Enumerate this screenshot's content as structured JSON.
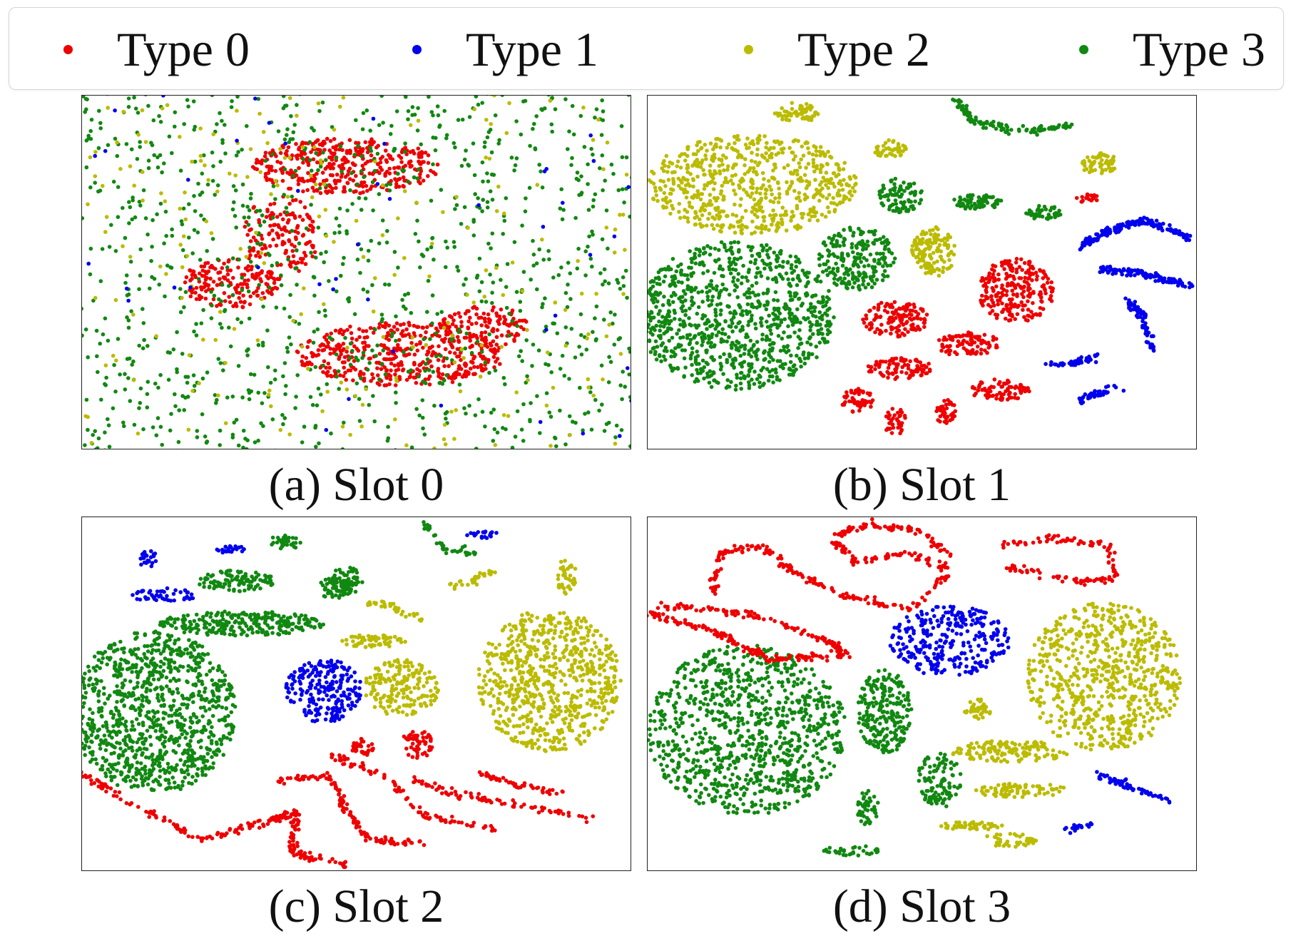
{
  "legend": {
    "items": [
      {
        "label": "Type 0",
        "color": "#ee0000"
      },
      {
        "label": "Type 1",
        "color": "#0000ee"
      },
      {
        "label": "Type 2",
        "color": "#bbbb00"
      },
      {
        "label": "Type 3",
        "color": "#118811"
      }
    ]
  },
  "chart_data": [
    {
      "type": "scatter",
      "title": "(a) Slot 0",
      "grid": false,
      "clusters": [
        {
          "series": "Type 0",
          "shape": "blob",
          "cx": 0.48,
          "cy": 0.2,
          "rx": 0.17,
          "ry": 0.08,
          "n": 380
        },
        {
          "series": "Type 0",
          "shape": "blob",
          "cx": 0.27,
          "cy": 0.53,
          "rx": 0.09,
          "ry": 0.07,
          "n": 160
        },
        {
          "series": "Type 0",
          "shape": "blob",
          "cx": 0.36,
          "cy": 0.4,
          "rx": 0.07,
          "ry": 0.12,
          "n": 150
        },
        {
          "series": "Type 0",
          "shape": "blob",
          "cx": 0.58,
          "cy": 0.73,
          "rx": 0.19,
          "ry": 0.09,
          "n": 440
        },
        {
          "series": "Type 0",
          "shape": "blob",
          "cx": 0.73,
          "cy": 0.65,
          "rx": 0.08,
          "ry": 0.06,
          "n": 120
        },
        {
          "series": "Type 3",
          "shape": "scatter",
          "cx": 0.5,
          "cy": 0.5,
          "rx": 0.62,
          "ry": 0.68,
          "n": 1900
        },
        {
          "series": "Type 2",
          "shape": "scatter",
          "cx": 0.5,
          "cy": 0.5,
          "rx": 0.6,
          "ry": 0.66,
          "n": 360
        },
        {
          "series": "Type 1",
          "shape": "scatter",
          "cx": 0.5,
          "cy": 0.5,
          "rx": 0.6,
          "ry": 0.66,
          "n": 70
        }
      ]
    },
    {
      "type": "scatter",
      "title": "(b) Slot 1",
      "grid": false,
      "clusters": [
        {
          "series": "Type 2",
          "shape": "blob",
          "cx": 0.19,
          "cy": 0.25,
          "rx": 0.19,
          "ry": 0.14,
          "n": 650
        },
        {
          "series": "Type 3",
          "shape": "blob",
          "cx": 0.16,
          "cy": 0.62,
          "rx": 0.18,
          "ry": 0.21,
          "n": 950
        },
        {
          "series": "Type 3",
          "shape": "blob",
          "cx": 0.38,
          "cy": 0.46,
          "rx": 0.07,
          "ry": 0.09,
          "n": 210
        },
        {
          "series": "Type 3",
          "shape": "blob",
          "cx": 0.46,
          "cy": 0.28,
          "rx": 0.04,
          "ry": 0.05,
          "n": 90
        },
        {
          "series": "Type 3",
          "shape": "blob",
          "cx": 0.6,
          "cy": 0.3,
          "rx": 0.045,
          "ry": 0.022,
          "n": 70
        },
        {
          "series": "Type 3",
          "shape": "blob",
          "cx": 0.72,
          "cy": 0.33,
          "rx": 0.035,
          "ry": 0.02,
          "n": 45
        },
        {
          "series": "Type 3",
          "shape": "curve",
          "points": [
            [
              0.56,
              0.01
            ],
            [
              0.6,
              0.08
            ],
            [
              0.7,
              0.1
            ],
            [
              0.78,
              0.08
            ]
          ],
          "n": 120
        },
        {
          "series": "Type 2",
          "shape": "blob",
          "cx": 0.52,
          "cy": 0.44,
          "rx": 0.04,
          "ry": 0.07,
          "n": 140
        },
        {
          "series": "Type 2",
          "shape": "blob",
          "cx": 0.27,
          "cy": 0.05,
          "rx": 0.04,
          "ry": 0.03,
          "n": 60
        },
        {
          "series": "Type 2",
          "shape": "blob",
          "cx": 0.44,
          "cy": 0.15,
          "rx": 0.03,
          "ry": 0.025,
          "n": 45
        },
        {
          "series": "Type 2",
          "shape": "blob",
          "cx": 0.82,
          "cy": 0.19,
          "rx": 0.035,
          "ry": 0.03,
          "n": 60
        },
        {
          "series": "Type 0",
          "shape": "blob",
          "cx": 0.67,
          "cy": 0.55,
          "rx": 0.07,
          "ry": 0.09,
          "n": 240
        },
        {
          "series": "Type 0",
          "shape": "blob",
          "cx": 0.45,
          "cy": 0.63,
          "rx": 0.06,
          "ry": 0.05,
          "n": 130
        },
        {
          "series": "Type 0",
          "shape": "blob",
          "cx": 0.58,
          "cy": 0.7,
          "rx": 0.06,
          "ry": 0.035,
          "n": 90
        },
        {
          "series": "Type 0",
          "shape": "blob",
          "cx": 0.46,
          "cy": 0.77,
          "rx": 0.06,
          "ry": 0.03,
          "n": 90
        },
        {
          "series": "Type 0",
          "shape": "blob",
          "cx": 0.64,
          "cy": 0.83,
          "rx": 0.055,
          "ry": 0.03,
          "n": 80
        },
        {
          "series": "Type 0",
          "shape": "blob",
          "cx": 0.38,
          "cy": 0.86,
          "rx": 0.03,
          "ry": 0.035,
          "n": 50
        },
        {
          "series": "Type 0",
          "shape": "blob",
          "cx": 0.45,
          "cy": 0.92,
          "rx": 0.02,
          "ry": 0.04,
          "n": 40
        },
        {
          "series": "Type 0",
          "shape": "blob",
          "cx": 0.54,
          "cy": 0.89,
          "rx": 0.02,
          "ry": 0.035,
          "n": 40
        },
        {
          "series": "Type 0",
          "shape": "blob",
          "cx": 0.8,
          "cy": 0.29,
          "rx": 0.02,
          "ry": 0.012,
          "n": 20
        },
        {
          "series": "Type 1",
          "shape": "curve",
          "points": [
            [
              0.78,
              0.43
            ],
            [
              0.84,
              0.38
            ],
            [
              0.9,
              0.35
            ]
          ],
          "n": 90
        },
        {
          "series": "Type 1",
          "shape": "curve",
          "points": [
            [
              0.82,
              0.49
            ],
            [
              0.9,
              0.5
            ],
            [
              0.99,
              0.54
            ]
          ],
          "n": 110
        },
        {
          "series": "Type 1",
          "shape": "curve",
          "points": [
            [
              0.89,
              0.35
            ],
            [
              0.94,
              0.37
            ],
            [
              0.99,
              0.41
            ]
          ],
          "n": 70
        },
        {
          "series": "Type 1",
          "shape": "curve",
          "points": [
            [
              0.87,
              0.58
            ],
            [
              0.9,
              0.62
            ],
            [
              0.92,
              0.72
            ]
          ],
          "n": 70
        },
        {
          "series": "Type 1",
          "shape": "curve",
          "points": [
            [
              0.73,
              0.76
            ],
            [
              0.78,
              0.75
            ],
            [
              0.82,
              0.74
            ]
          ],
          "n": 45
        },
        {
          "series": "Type 1",
          "shape": "curve",
          "points": [
            [
              0.78,
              0.86
            ],
            [
              0.82,
              0.84
            ],
            [
              0.86,
              0.82
            ]
          ],
          "n": 40
        }
      ]
    },
    {
      "type": "scatter",
      "title": "(c) Slot 2",
      "grid": false,
      "clusters": [
        {
          "series": "Type 3",
          "shape": "blob",
          "cx": 0.13,
          "cy": 0.55,
          "rx": 0.15,
          "ry": 0.23,
          "n": 1000
        },
        {
          "series": "Type 3",
          "shape": "blob",
          "cx": 0.29,
          "cy": 0.3,
          "rx": 0.15,
          "ry": 0.035,
          "n": 260
        },
        {
          "series": "Type 3",
          "shape": "blob",
          "cx": 0.28,
          "cy": 0.18,
          "rx": 0.07,
          "ry": 0.03,
          "n": 110
        },
        {
          "series": "Type 3",
          "shape": "blob",
          "cx": 0.48,
          "cy": 0.18,
          "rx": 0.03,
          "ry": 0.04,
          "n": 60
        },
        {
          "series": "Type 3",
          "shape": "blob",
          "cx": 0.37,
          "cy": 0.07,
          "rx": 0.03,
          "ry": 0.02,
          "n": 35
        },
        {
          "series": "Type 3",
          "shape": "blob",
          "cx": 0.46,
          "cy": 0.2,
          "rx": 0.03,
          "ry": 0.03,
          "n": 45
        },
        {
          "series": "Type 3",
          "shape": "curve",
          "points": [
            [
              0.62,
              0.01
            ],
            [
              0.66,
              0.09
            ],
            [
              0.72,
              0.1
            ]
          ],
          "n": 40
        },
        {
          "series": "Type 1",
          "shape": "blob",
          "cx": 0.44,
          "cy": 0.49,
          "rx": 0.07,
          "ry": 0.09,
          "n": 230
        },
        {
          "series": "Type 1",
          "shape": "blob",
          "cx": 0.15,
          "cy": 0.22,
          "rx": 0.06,
          "ry": 0.02,
          "n": 50
        },
        {
          "series": "Type 1",
          "shape": "blob",
          "cx": 0.12,
          "cy": 0.12,
          "rx": 0.015,
          "ry": 0.035,
          "n": 25
        },
        {
          "series": "Type 1",
          "shape": "blob",
          "cx": 0.27,
          "cy": 0.09,
          "rx": 0.025,
          "ry": 0.012,
          "n": 20
        },
        {
          "series": "Type 1",
          "shape": "blob",
          "cx": 0.73,
          "cy": 0.05,
          "rx": 0.03,
          "ry": 0.01,
          "n": 20
        },
        {
          "series": "Type 2",
          "shape": "blob",
          "cx": 0.85,
          "cy": 0.46,
          "rx": 0.13,
          "ry": 0.2,
          "n": 720
        },
        {
          "series": "Type 2",
          "shape": "blob",
          "cx": 0.58,
          "cy": 0.48,
          "rx": 0.07,
          "ry": 0.08,
          "n": 180
        },
        {
          "series": "Type 2",
          "shape": "blob",
          "cx": 0.53,
          "cy": 0.35,
          "rx": 0.06,
          "ry": 0.02,
          "n": 60
        },
        {
          "series": "Type 2",
          "shape": "blob",
          "cx": 0.88,
          "cy": 0.17,
          "rx": 0.02,
          "ry": 0.05,
          "n": 40
        },
        {
          "series": "Type 2",
          "shape": "curve",
          "points": [
            [
              0.52,
              0.24
            ],
            [
              0.56,
              0.25
            ],
            [
              0.62,
              0.29
            ]
          ],
          "n": 40
        },
        {
          "series": "Type 2",
          "shape": "curve",
          "points": [
            [
              0.66,
              0.2
            ],
            [
              0.71,
              0.18
            ],
            [
              0.75,
              0.15
            ]
          ],
          "n": 30
        },
        {
          "series": "Type 0",
          "shape": "curve",
          "points": [
            [
              0.0,
              0.72
            ],
            [
              0.1,
              0.82
            ],
            [
              0.22,
              0.91
            ],
            [
              0.33,
              0.86
            ],
            [
              0.39,
              0.83
            ],
            [
              0.38,
              0.95
            ],
            [
              0.48,
              0.98
            ]
          ],
          "n": 220
        },
        {
          "series": "Type 0",
          "shape": "curve",
          "points": [
            [
              0.36,
              0.74
            ],
            [
              0.45,
              0.73
            ],
            [
              0.48,
              0.82
            ],
            [
              0.52,
              0.91
            ],
            [
              0.62,
              0.92
            ]
          ],
          "n": 120
        },
        {
          "series": "Type 0",
          "shape": "curve",
          "points": [
            [
              0.45,
              0.67
            ],
            [
              0.55,
              0.73
            ],
            [
              0.62,
              0.84
            ],
            [
              0.75,
              0.88
            ]
          ],
          "n": 90
        },
        {
          "series": "Type 0",
          "shape": "curve",
          "points": [
            [
              0.6,
              0.74
            ],
            [
              0.68,
              0.78
            ],
            [
              0.78,
              0.81
            ],
            [
              0.93,
              0.85
            ]
          ],
          "n": 80
        },
        {
          "series": "Type 0",
          "shape": "curve",
          "points": [
            [
              0.72,
              0.72
            ],
            [
              0.8,
              0.76
            ],
            [
              0.88,
              0.78
            ]
          ],
          "n": 50
        },
        {
          "series": "Type 0",
          "shape": "blob",
          "cx": 0.51,
          "cy": 0.65,
          "rx": 0.02,
          "ry": 0.025,
          "n": 35
        },
        {
          "series": "Type 0",
          "shape": "blob",
          "cx": 0.61,
          "cy": 0.64,
          "rx": 0.03,
          "ry": 0.04,
          "n": 50
        }
      ]
    },
    {
      "type": "scatter",
      "title": "(d) Slot 3",
      "grid": false,
      "clusters": [
        {
          "series": "Type 3",
          "shape": "blob",
          "cx": 0.18,
          "cy": 0.6,
          "rx": 0.18,
          "ry": 0.24,
          "n": 950
        },
        {
          "series": "Type 3",
          "shape": "blob",
          "cx": 0.43,
          "cy": 0.55,
          "rx": 0.05,
          "ry": 0.12,
          "n": 230
        },
        {
          "series": "Type 3",
          "shape": "blob",
          "cx": 0.53,
          "cy": 0.74,
          "rx": 0.04,
          "ry": 0.08,
          "n": 110
        },
        {
          "series": "Type 3",
          "shape": "blob",
          "cx": 0.4,
          "cy": 0.82,
          "rx": 0.02,
          "ry": 0.05,
          "n": 45
        },
        {
          "series": "Type 3",
          "shape": "blob",
          "cx": 0.37,
          "cy": 0.94,
          "rx": 0.05,
          "ry": 0.015,
          "n": 35
        },
        {
          "series": "Type 1",
          "shape": "blob",
          "cx": 0.55,
          "cy": 0.35,
          "rx": 0.11,
          "ry": 0.1,
          "n": 300
        },
        {
          "series": "Type 1",
          "shape": "curve",
          "points": [
            [
              0.82,
              0.73
            ],
            [
              0.88,
              0.76
            ],
            [
              0.95,
              0.8
            ]
          ],
          "n": 60
        },
        {
          "series": "Type 1",
          "shape": "curve",
          "points": [
            [
              0.76,
              0.88
            ],
            [
              0.81,
              0.87
            ]
          ],
          "n": 20
        },
        {
          "series": "Type 2",
          "shape": "blob",
          "cx": 0.83,
          "cy": 0.45,
          "rx": 0.14,
          "ry": 0.21,
          "n": 700
        },
        {
          "series": "Type 2",
          "shape": "blob",
          "cx": 0.66,
          "cy": 0.66,
          "rx": 0.11,
          "ry": 0.03,
          "n": 140
        },
        {
          "series": "Type 2",
          "shape": "blob",
          "cx": 0.68,
          "cy": 0.77,
          "rx": 0.09,
          "ry": 0.02,
          "n": 80
        },
        {
          "series": "Type 2",
          "shape": "blob",
          "cx": 0.59,
          "cy": 0.87,
          "rx": 0.06,
          "ry": 0.012,
          "n": 45
        },
        {
          "series": "Type 2",
          "shape": "blob",
          "cx": 0.66,
          "cy": 0.91,
          "rx": 0.05,
          "ry": 0.02,
          "n": 40
        },
        {
          "series": "Type 2",
          "shape": "blob",
          "cx": 0.6,
          "cy": 0.54,
          "rx": 0.025,
          "ry": 0.03,
          "n": 40
        },
        {
          "series": "Type 0",
          "shape": "curve",
          "points": [
            [
              0.0,
              0.27
            ],
            [
              0.12,
              0.32
            ],
            [
              0.22,
              0.4
            ],
            [
              0.36,
              0.39
            ],
            [
              0.33,
              0.35
            ],
            [
              0.18,
              0.27
            ],
            [
              0.02,
              0.25
            ]
          ],
          "n": 260
        },
        {
          "series": "Type 0",
          "shape": "curve",
          "points": [
            [
              0.12,
              0.21
            ],
            [
              0.13,
              0.1
            ],
            [
              0.21,
              0.08
            ],
            [
              0.26,
              0.15
            ],
            [
              0.35,
              0.22
            ],
            [
              0.48,
              0.26
            ],
            [
              0.55,
              0.15
            ],
            [
              0.47,
              0.1
            ],
            [
              0.38,
              0.13
            ],
            [
              0.34,
              0.07
            ]
          ],
          "n": 240
        },
        {
          "series": "Type 0",
          "shape": "curve",
          "points": [
            [
              0.34,
              0.05
            ],
            [
              0.4,
              0.02
            ],
            [
              0.5,
              0.04
            ],
            [
              0.55,
              0.11
            ]
          ],
          "n": 80
        },
        {
          "series": "Type 0",
          "shape": "curve",
          "points": [
            [
              0.65,
              0.14
            ],
            [
              0.78,
              0.18
            ],
            [
              0.85,
              0.17
            ],
            [
              0.84,
              0.08
            ],
            [
              0.74,
              0.06
            ],
            [
              0.64,
              0.08
            ]
          ],
          "n": 120
        }
      ]
    }
  ]
}
